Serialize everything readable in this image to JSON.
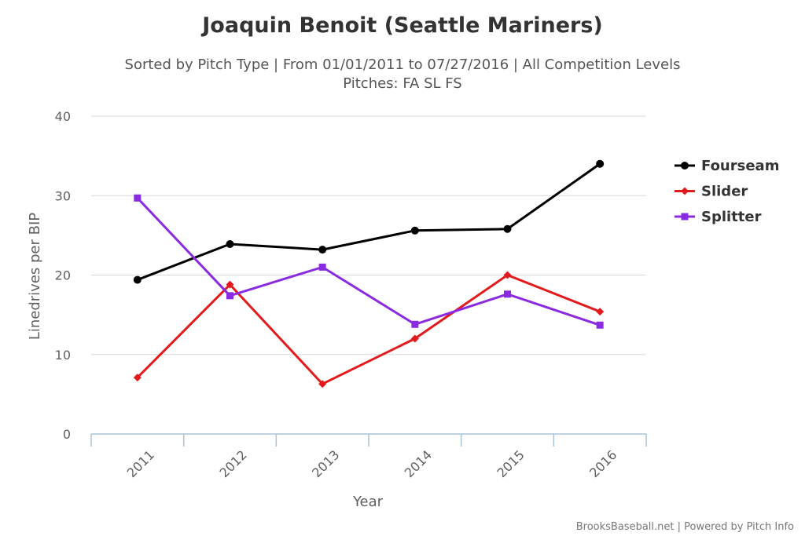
{
  "chart_data": {
    "type": "line",
    "title": "Joaquin Benoit (Seattle Mariners)",
    "subtitle_lines": [
      "Sorted by Pitch Type | From 01/01/2011 to 07/27/2016 | All Competition Levels",
      "Pitches: FA SL FS"
    ],
    "xlabel": "Year",
    "ylabel": "Linedrives per BIP",
    "categories": [
      "2011",
      "2012",
      "2013",
      "2014",
      "2015",
      "2016"
    ],
    "ylim": [
      0,
      40
    ],
    "yticks": [
      0,
      10,
      20,
      30,
      40
    ],
    "grid": true,
    "legend_position": "right",
    "series": [
      {
        "name": "Fourseam",
        "color": "#000000",
        "marker": "circle",
        "values": [
          19.4,
          23.9,
          23.2,
          25.6,
          25.8,
          34.0
        ]
      },
      {
        "name": "Slider",
        "color": "#e31a1c",
        "marker": "diamond",
        "values": [
          7.1,
          18.8,
          6.3,
          12.0,
          20.0,
          15.4
        ]
      },
      {
        "name": "Splitter",
        "color": "#8a2be2",
        "marker": "square",
        "values": [
          29.7,
          17.4,
          21.0,
          13.8,
          17.6,
          13.7
        ]
      }
    ]
  },
  "credits": "BrooksBaseball.net | Powered by Pitch Info"
}
